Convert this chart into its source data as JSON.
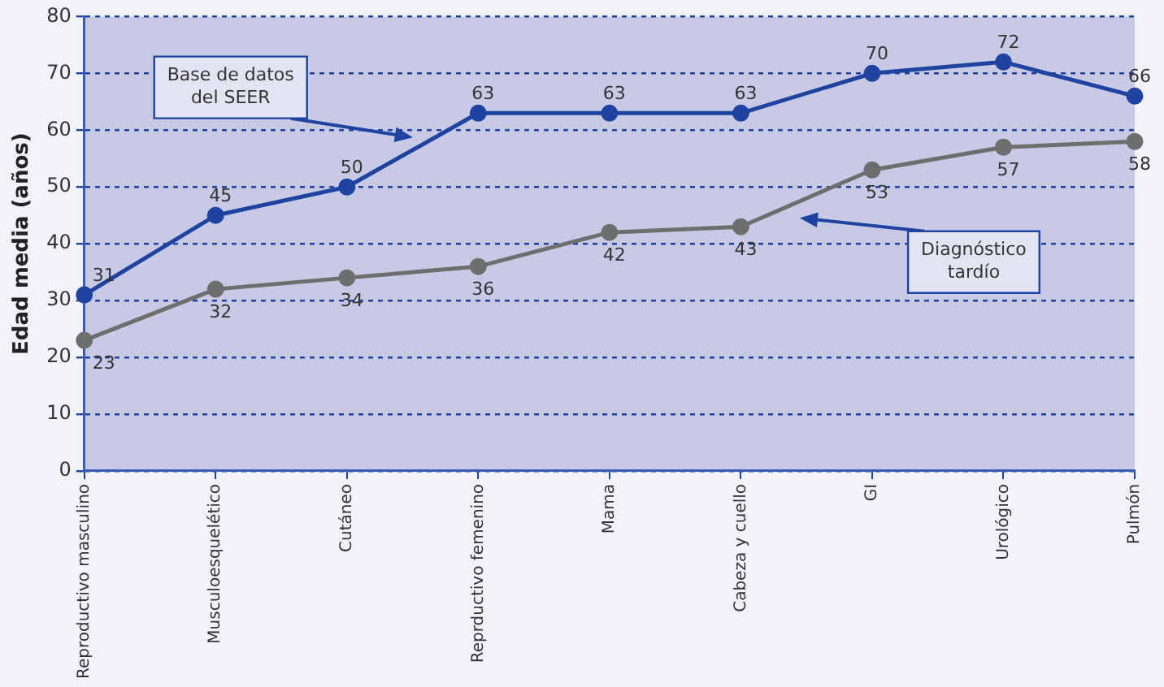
{
  "chart_data": {
    "type": "line",
    "ylabel": "Edad media (años)",
    "categories": [
      "Reproductivo masculino",
      "Musculoesquelético",
      "Cutáneo",
      "Reprductivo femenino",
      "Mama",
      "Cabeza y cuello",
      "GI",
      "Urológico",
      "Pulmón"
    ],
    "ylim": [
      0,
      80
    ],
    "yticks": [
      0,
      10,
      20,
      30,
      40,
      50,
      60,
      70,
      80
    ],
    "series": [
      {
        "color": "#1f43a0",
        "values": [
          31,
          45,
          50,
          63,
          63,
          63,
          70,
          72,
          66
        ],
        "value_labels": [
          "31",
          "45",
          "50",
          "63",
          "63",
          "63",
          "70",
          "72",
          "66"
        ]
      },
      {
        "color": "#6e6e6e",
        "values": [
          23,
          32,
          34,
          36,
          42,
          43,
          53,
          57,
          58
        ],
        "value_labels": [
          "23",
          "32",
          "34",
          "36",
          "42",
          "43",
          "53",
          "57",
          "58"
        ]
      }
    ],
    "annotations": [
      "Base de datos del SEER",
      "Diagnóstico tardío"
    ],
    "grid": "y",
    "marker": "circle",
    "line_style": "solid",
    "legend": false
  }
}
